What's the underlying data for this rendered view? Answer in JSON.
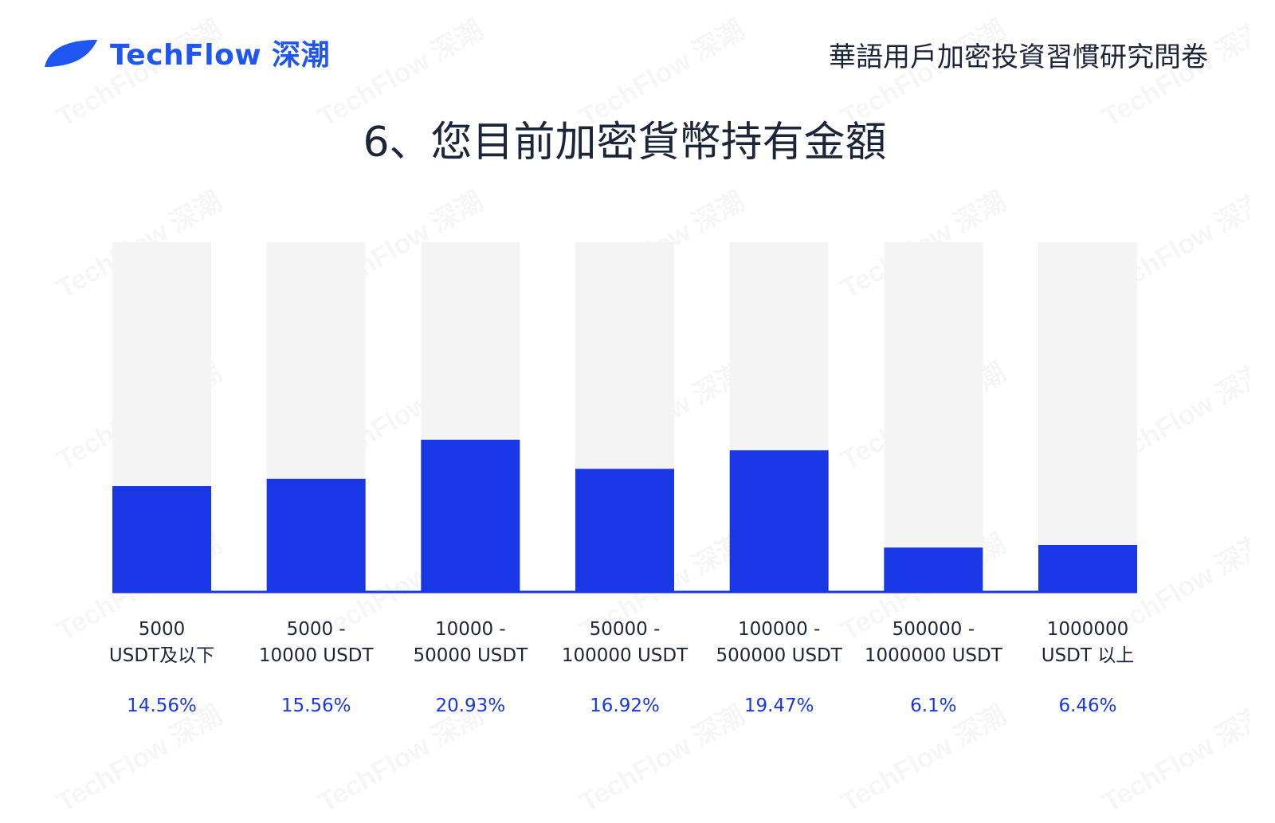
{
  "header": {
    "brand": "TechFlow 深潮",
    "survey_title": "華語用戶加密投資習慣研究問卷"
  },
  "colors": {
    "bar": "#1937e6",
    "track": "#f4f4f4",
    "baseline": "#1937e6",
    "percent_text": "#1937e6",
    "label_text": "#1d2538",
    "brand": "#1f56f0"
  },
  "chart_data": {
    "type": "bar",
    "title": "6、您目前加密貨幣持有金額",
    "categories": [
      [
        "5000",
        "USDT及以下"
      ],
      [
        "5000 -",
        "10000 USDT"
      ],
      [
        "10000 -",
        "50000 USDT"
      ],
      [
        "50000 -",
        "100000 USDT"
      ],
      [
        "100000 -",
        "500000 USDT"
      ],
      [
        "500000 -",
        "1000000 USDT"
      ],
      [
        "1000000",
        "USDT 以上"
      ]
    ],
    "values": [
      14.56,
      15.56,
      20.93,
      16.92,
      19.47,
      6.1,
      6.46
    ],
    "value_labels": [
      "14.56%",
      "15.56%",
      "20.93%",
      "16.92%",
      "19.47%",
      "6.1%",
      "6.46%"
    ],
    "ylim": [
      0,
      100
    ],
    "grid": false,
    "legend": false
  }
}
